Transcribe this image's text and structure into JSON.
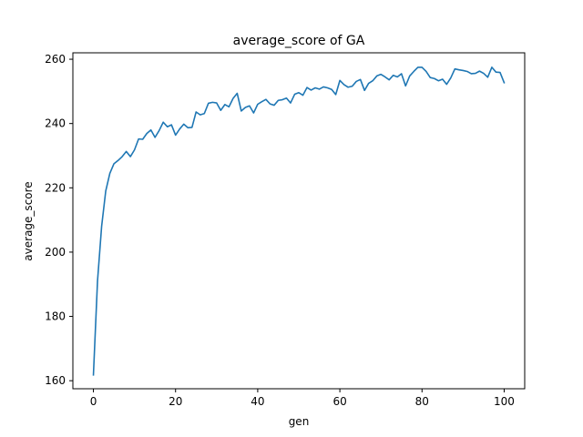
{
  "chart_data": {
    "type": "line",
    "title": "average_score of GA",
    "xlabel": "gen",
    "ylabel": "average_score",
    "xlim": [
      -5,
      105
    ],
    "ylim": [
      157.5,
      262
    ],
    "xticks": [
      0,
      20,
      40,
      60,
      80,
      100
    ],
    "yticks": [
      160,
      180,
      200,
      220,
      240,
      260
    ],
    "grid": false,
    "line_color": "#1f77b4",
    "series": [
      {
        "x": [
          0,
          1,
          2,
          3,
          4,
          5,
          6,
          7,
          8,
          9,
          10,
          11,
          12,
          13,
          14,
          15,
          16,
          17,
          18,
          19,
          20,
          21,
          22,
          23,
          24,
          25,
          26,
          27,
          28,
          29,
          30,
          31,
          32,
          33,
          34,
          35,
          36,
          37,
          38,
          39,
          40,
          41,
          42,
          43,
          44,
          45,
          46,
          47,
          48,
          49,
          50,
          51,
          52,
          53,
          54,
          55,
          56,
          57,
          58,
          59,
          60,
          61,
          62,
          63,
          64,
          65,
          66,
          67,
          68,
          69,
          70,
          71,
          72,
          73,
          74,
          75,
          76,
          77,
          78,
          79,
          80,
          81,
          82,
          83,
          84,
          85,
          86,
          87,
          88,
          89,
          90,
          91,
          92,
          93,
          94,
          95,
          96,
          97,
          98,
          99,
          100
        ],
        "values": [
          161.8,
          191.0,
          208.0,
          219.0,
          224.5,
          227.5,
          228.5,
          229.7,
          231.3,
          229.7,
          231.8,
          235.2,
          235.1,
          236.9,
          238.0,
          235.7,
          237.8,
          240.4,
          239.0,
          239.6,
          236.4,
          238.3,
          239.8,
          238.7,
          238.8,
          243.6,
          242.7,
          243.1,
          246.3,
          246.6,
          246.4,
          244.1,
          245.9,
          245.2,
          247.8,
          249.4,
          243.9,
          245.0,
          245.5,
          243.3,
          246.0,
          246.8,
          247.5,
          246.1,
          245.7,
          247.2,
          247.4,
          247.9,
          246.4,
          249.1,
          249.6,
          248.8,
          251.2,
          250.4,
          251.1,
          250.7,
          251.4,
          251.1,
          250.6,
          249.0,
          253.4,
          252.1,
          251.3,
          251.6,
          253.1,
          253.7,
          250.3,
          252.5,
          253.3,
          254.8,
          255.3,
          254.5,
          253.6,
          255.0,
          254.5,
          255.5,
          251.7,
          254.8,
          256.2,
          257.5,
          257.5,
          256.2,
          254.3,
          254.0,
          253.3,
          253.8,
          252.2,
          254.2,
          257.0,
          256.7,
          256.5,
          256.2,
          255.5,
          255.6,
          256.3,
          255.6,
          254.4,
          257.5,
          256.0,
          255.9,
          252.7
        ]
      }
    ]
  }
}
